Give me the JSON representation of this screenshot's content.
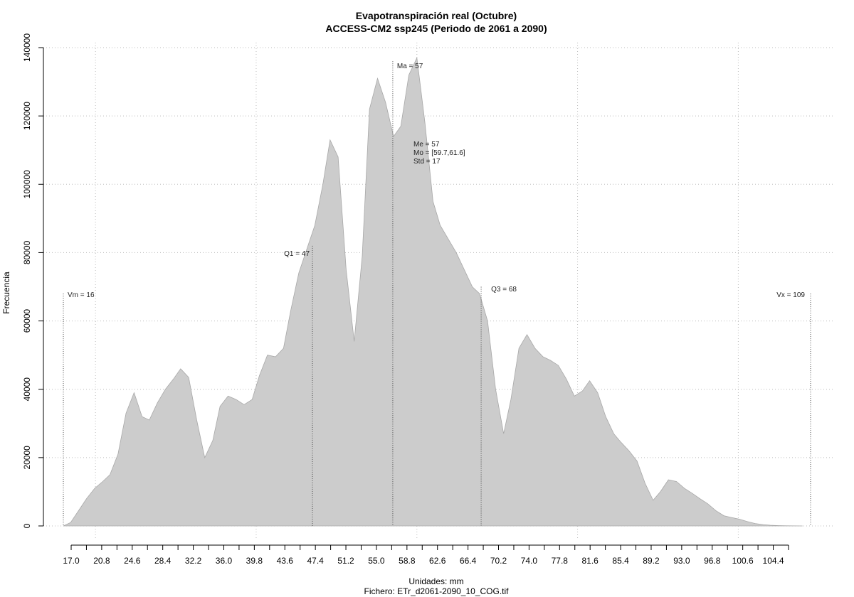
{
  "chart_data": {
    "type": "area",
    "title": "Evapotranspiración real (Octubre)",
    "subtitle": "ACCESS-CM2 ssp245 (Periodo de 2061 a 2090)",
    "xlabel": "Unidades: mm",
    "footer": "Fichero: ETr_d2061-2090_10_COG.tif",
    "ylabel": "Frecuencia",
    "xlim": [
      16,
      109
    ],
    "ylim": [
      0,
      140000
    ],
    "x_ticks": [
      "17.0",
      "20.8",
      "24.6",
      "28.4",
      "32.2",
      "36.0",
      "39.8",
      "43.6",
      "47.4",
      "51.2",
      "55.0",
      "58.8",
      "62.6",
      "66.4",
      "70.2",
      "74.0",
      "77.8",
      "81.6",
      "85.4",
      "89.2",
      "93.0",
      "96.8",
      "100.6",
      "104.4"
    ],
    "y_ticks": [
      "0",
      "20000",
      "40000",
      "60000",
      "80000",
      "100000",
      "120000",
      "140000"
    ],
    "grid": true,
    "color": "#cccccc",
    "x": [
      16.0,
      16.9,
      17.9,
      18.9,
      19.9,
      20.9,
      21.8,
      22.8,
      23.8,
      24.8,
      25.8,
      26.7,
      27.7,
      28.7,
      29.7,
      30.6,
      31.6,
      32.6,
      33.6,
      34.6,
      35.5,
      36.5,
      37.5,
      38.5,
      39.5,
      40.4,
      41.4,
      42.4,
      43.4,
      44.3,
      45.3,
      46.3,
      47.3,
      48.3,
      49.2,
      50.2,
      51.2,
      52.2,
      53.2,
      54.1,
      55.1,
      56.1,
      57.1,
      58.0,
      59.0,
      60.0,
      61.0,
      62.0,
      62.9,
      63.9,
      64.9,
      65.9,
      66.9,
      67.8,
      68.8,
      69.8,
      70.8,
      71.7,
      72.7,
      73.7,
      74.7,
      75.7,
      76.6,
      77.6,
      78.6,
      79.6,
      80.6,
      81.5,
      82.5,
      83.5,
      84.5,
      85.4,
      86.4,
      87.4,
      88.4,
      89.4,
      90.3,
      91.3,
      92.3,
      93.3,
      94.3,
      95.2,
      96.2,
      97.2,
      98.2,
      99.1,
      100.1,
      101.1,
      102.1,
      103.1,
      104.0,
      105.0,
      106.0,
      107.0,
      108.0
    ],
    "values": [
      0,
      1000,
      4500,
      8000,
      11000,
      13000,
      15000,
      21000,
      33000,
      39000,
      32000,
      31000,
      36000,
      40000,
      43000,
      46000,
      43500,
      31000,
      20000,
      25000,
      35000,
      38000,
      37000,
      35500,
      37000,
      44000,
      50000,
      49500,
      52000,
      63000,
      74000,
      81000,
      88000,
      100000,
      113000,
      108000,
      75000,
      54000,
      79000,
      122000,
      131000,
      124000,
      114000,
      117000,
      132000,
      137000,
      118000,
      95000,
      88000,
      84000,
      80000,
      75000,
      70000,
      68000,
      60000,
      40000,
      27000,
      37000,
      52000,
      56000,
      52000,
      49500,
      48500,
      47000,
      43000,
      38000,
      39500,
      42500,
      39000,
      32000,
      27000,
      24500,
      22000,
      19000,
      12500,
      7500,
      10000,
      13500,
      13000,
      11000,
      9500,
      8000,
      6500,
      4500,
      3000,
      2500,
      2000,
      1300,
      700,
      400,
      200,
      100,
      50,
      20,
      0
    ],
    "markers": [
      {
        "x": 16,
        "label": "Vm = 16",
        "top": 68000,
        "anchor": "start",
        "label_y": 67000,
        "dx": 6
      },
      {
        "x": 47,
        "label": "Q1 = 47",
        "top": 82000,
        "anchor": "end",
        "label_y": 79000,
        "dx": -4
      },
      {
        "x": 57,
        "label": "Ma = 57",
        "top": 136000,
        "anchor": "start",
        "label_y": 134000,
        "dx": 6
      },
      {
        "x": 68,
        "label": "Q3 = 68",
        "top": 70000,
        "anchor": "start",
        "label_y": 68600,
        "dx": 14
      },
      {
        "x": 109,
        "label": "Vx = 109",
        "top": 68000,
        "anchor": "end",
        "label_y": 67000,
        "dx": -8
      }
    ],
    "stats": [
      "Me = 57",
      "Mo = [59.7,61.6]",
      "Std = 17"
    ]
  }
}
